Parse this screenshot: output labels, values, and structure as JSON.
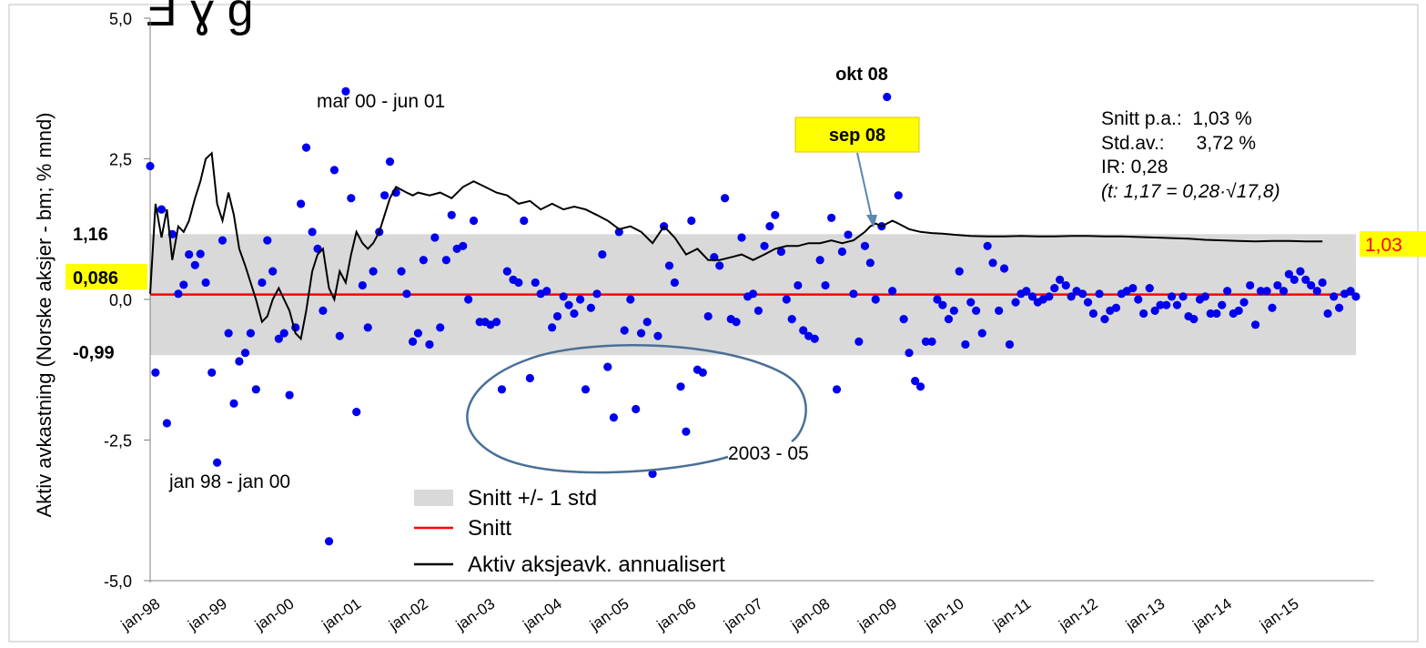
{
  "chart_data": {
    "type": "scatter",
    "ylabel": "Aktiv avkastning (Norske aksjer - bm; % mnd)",
    "ylim": [
      -5.0,
      5.0
    ],
    "yticks": [
      "5,0",
      "2,5",
      "0,0",
      "-2,5",
      "-5,0"
    ],
    "ytick_values": [
      5.0,
      2.5,
      0.0,
      -2.5,
      -5.0
    ],
    "xlim": [
      1998.0,
      2016.0
    ],
    "xticks": [
      "jan-98",
      "jan-99",
      "jan-00",
      "jan-01",
      "jan-02",
      "jan-03",
      "jan-04",
      "jan-05",
      "jan-06",
      "jan-07",
      "jan-08",
      "jan-09",
      "jan-10",
      "jan-11",
      "jan-12",
      "jan-13",
      "jan-14",
      "jan-15"
    ],
    "xtick_values": [
      1998,
      1999,
      2000,
      2001,
      2002,
      2003,
      2004,
      2005,
      2006,
      2007,
      2008,
      2009,
      2010,
      2011,
      2012,
      2013,
      2014,
      2015
    ],
    "band": {
      "label": "Snitt +/- 1 std",
      "low": -0.99,
      "high": 1.16,
      "color": "#d9d9d9"
    },
    "mean_line": {
      "label": "Snitt",
      "value": 0.086,
      "color": "#ff0000"
    },
    "left_labels": {
      "upper": "1,16",
      "mean": "0,086",
      "lower": "-0,99"
    },
    "right_label": "1,03",
    "highlight_color": "#ffff00",
    "point_color": "#0000ee",
    "series": [
      {
        "name": "Aktiv aksjeavk. annualisert",
        "color": "#000000",
        "points": [
          [
            1998.0,
            0.1
          ],
          [
            1998.08,
            1.7
          ],
          [
            1998.17,
            1.1
          ],
          [
            1998.25,
            1.6
          ],
          [
            1998.33,
            0.7
          ],
          [
            1998.42,
            1.3
          ],
          [
            1998.5,
            1.2
          ],
          [
            1998.58,
            1.4
          ],
          [
            1998.67,
            1.8
          ],
          [
            1998.75,
            2.1
          ],
          [
            1998.83,
            2.5
          ],
          [
            1998.92,
            2.6
          ],
          [
            1999.0,
            1.7
          ],
          [
            1999.08,
            1.4
          ],
          [
            1999.17,
            1.9
          ],
          [
            1999.25,
            1.5
          ],
          [
            1999.33,
            0.9
          ],
          [
            1999.42,
            0.6
          ],
          [
            1999.5,
            0.3
          ],
          [
            1999.58,
            0.0
          ],
          [
            1999.67,
            -0.4
          ],
          [
            1999.75,
            -0.3
          ],
          [
            1999.83,
            0.0
          ],
          [
            1999.92,
            0.2
          ],
          [
            2000.0,
            0.0
          ],
          [
            2000.08,
            -0.2
          ],
          [
            2000.17,
            -0.6
          ],
          [
            2000.25,
            -0.7
          ],
          [
            2000.33,
            -0.2
          ],
          [
            2000.42,
            0.5
          ],
          [
            2000.5,
            0.8
          ],
          [
            2000.58,
            0.9
          ],
          [
            2000.67,
            0.2
          ],
          [
            2000.75,
            0.0
          ],
          [
            2000.83,
            0.5
          ],
          [
            2000.92,
            0.3
          ],
          [
            2001.0,
            0.8
          ],
          [
            2001.08,
            1.2
          ],
          [
            2001.17,
            1.0
          ],
          [
            2001.25,
            0.9
          ],
          [
            2001.33,
            1.0
          ],
          [
            2001.42,
            1.2
          ],
          [
            2001.5,
            1.5
          ],
          [
            2001.58,
            1.8
          ],
          [
            2001.67,
            2.0
          ],
          [
            2001.75,
            1.95
          ],
          [
            2001.83,
            1.9
          ],
          [
            2001.92,
            1.85
          ],
          [
            2002.0,
            1.9
          ],
          [
            2002.17,
            1.85
          ],
          [
            2002.33,
            1.9
          ],
          [
            2002.5,
            1.8
          ],
          [
            2002.67,
            2.0
          ],
          [
            2002.83,
            2.1
          ],
          [
            2003.0,
            2.0
          ],
          [
            2003.17,
            1.9
          ],
          [
            2003.33,
            1.85
          ],
          [
            2003.5,
            1.7
          ],
          [
            2003.67,
            1.75
          ],
          [
            2003.83,
            1.6
          ],
          [
            2004.0,
            1.7
          ],
          [
            2004.17,
            1.6
          ],
          [
            2004.33,
            1.65
          ],
          [
            2004.5,
            1.6
          ],
          [
            2004.67,
            1.5
          ],
          [
            2004.83,
            1.4
          ],
          [
            2005.0,
            1.25
          ],
          [
            2005.17,
            1.3
          ],
          [
            2005.33,
            1.2
          ],
          [
            2005.5,
            1.0
          ],
          [
            2005.67,
            1.3
          ],
          [
            2005.83,
            1.1
          ],
          [
            2006.0,
            0.8
          ],
          [
            2006.17,
            0.9
          ],
          [
            2006.33,
            0.7
          ],
          [
            2006.5,
            0.7
          ],
          [
            2006.67,
            0.75
          ],
          [
            2006.83,
            0.8
          ],
          [
            2007.0,
            0.7
          ],
          [
            2007.17,
            0.8
          ],
          [
            2007.33,
            0.9
          ],
          [
            2007.5,
            0.95
          ],
          [
            2007.67,
            0.95
          ],
          [
            2007.83,
            1.0
          ],
          [
            2008.0,
            1.0
          ],
          [
            2008.17,
            1.05
          ],
          [
            2008.33,
            1.0
          ],
          [
            2008.5,
            1.05
          ],
          [
            2008.67,
            1.2
          ],
          [
            2008.75,
            1.3
          ],
          [
            2008.83,
            1.35
          ],
          [
            2008.92,
            1.3
          ],
          [
            2009.0,
            1.35
          ],
          [
            2009.08,
            1.4
          ],
          [
            2009.17,
            1.35
          ],
          [
            2009.33,
            1.25
          ],
          [
            2009.5,
            1.2
          ],
          [
            2009.67,
            1.18
          ],
          [
            2009.83,
            1.17
          ],
          [
            2010.0,
            1.15
          ],
          [
            2010.25,
            1.13
          ],
          [
            2010.5,
            1.12
          ],
          [
            2010.75,
            1.12
          ],
          [
            2011.0,
            1.13
          ],
          [
            2011.25,
            1.12
          ],
          [
            2011.5,
            1.12
          ],
          [
            2011.75,
            1.13
          ],
          [
            2012.0,
            1.13
          ],
          [
            2012.25,
            1.12
          ],
          [
            2012.5,
            1.12
          ],
          [
            2012.75,
            1.11
          ],
          [
            2013.0,
            1.1
          ],
          [
            2013.25,
            1.09
          ],
          [
            2013.5,
            1.08
          ],
          [
            2013.75,
            1.06
          ],
          [
            2014.0,
            1.05
          ],
          [
            2014.25,
            1.04
          ],
          [
            2014.5,
            1.03
          ],
          [
            2014.75,
            1.04
          ],
          [
            2015.0,
            1.04
          ],
          [
            2015.25,
            1.03
          ],
          [
            2015.5,
            1.03
          ]
        ]
      }
    ],
    "scatter": [
      [
        1998.0,
        2.37
      ],
      [
        1998.08,
        -1.3
      ],
      [
        1998.17,
        1.6
      ],
      [
        1998.25,
        -2.2
      ],
      [
        1998.33,
        1.16
      ],
      [
        1998.42,
        0.1
      ],
      [
        1998.5,
        0.26
      ],
      [
        1998.58,
        0.8
      ],
      [
        1998.67,
        0.61
      ],
      [
        1998.75,
        0.81
      ],
      [
        1998.83,
        0.3
      ],
      [
        1998.92,
        -1.3
      ],
      [
        1999.0,
        -2.9
      ],
      [
        1999.08,
        1.05
      ],
      [
        1999.17,
        -0.6
      ],
      [
        1999.25,
        -1.85
      ],
      [
        1999.33,
        -1.1
      ],
      [
        1999.42,
        -0.95
      ],
      [
        1999.5,
        -0.6
      ],
      [
        1999.58,
        -1.6
      ],
      [
        1999.67,
        0.3
      ],
      [
        1999.75,
        1.05
      ],
      [
        1999.83,
        0.5
      ],
      [
        1999.92,
        -0.7
      ],
      [
        2000.0,
        -0.6
      ],
      [
        2000.08,
        -1.7
      ],
      [
        2000.17,
        -0.5
      ],
      [
        2000.25,
        1.7
      ],
      [
        2000.33,
        2.7
      ],
      [
        2000.42,
        1.2
      ],
      [
        2000.5,
        0.9
      ],
      [
        2000.58,
        -0.2
      ],
      [
        2000.67,
        -4.3
      ],
      [
        2000.75,
        2.3
      ],
      [
        2000.83,
        -0.65
      ],
      [
        2000.92,
        3.7
      ],
      [
        2001.0,
        1.8
      ],
      [
        2001.08,
        -2.0
      ],
      [
        2001.17,
        0.25
      ],
      [
        2001.25,
        -0.5
      ],
      [
        2001.33,
        0.5
      ],
      [
        2001.42,
        1.2
      ],
      [
        2001.5,
        1.85
      ],
      [
        2001.58,
        2.45
      ],
      [
        2001.67,
        1.9
      ],
      [
        2001.75,
        0.5
      ],
      [
        2001.83,
        0.1
      ],
      [
        2001.92,
        -0.75
      ],
      [
        2002.0,
        -0.6
      ],
      [
        2002.08,
        0.7
      ],
      [
        2002.17,
        -0.8
      ],
      [
        2002.25,
        1.1
      ],
      [
        2002.33,
        -0.5
      ],
      [
        2002.42,
        0.7
      ],
      [
        2002.5,
        1.5
      ],
      [
        2002.58,
        0.9
      ],
      [
        2002.67,
        0.95
      ],
      [
        2002.75,
        0.0
      ],
      [
        2002.83,
        1.4
      ],
      [
        2002.92,
        -0.4
      ],
      [
        2003.0,
        -0.4
      ],
      [
        2003.08,
        -0.45
      ],
      [
        2003.17,
        -0.4
      ],
      [
        2003.25,
        -1.6
      ],
      [
        2003.33,
        0.5
      ],
      [
        2003.42,
        0.35
      ],
      [
        2003.5,
        0.3
      ],
      [
        2003.58,
        1.4
      ],
      [
        2003.67,
        -1.4
      ],
      [
        2003.75,
        0.3
      ],
      [
        2003.83,
        0.1
      ],
      [
        2003.92,
        0.15
      ],
      [
        2004.0,
        -0.5
      ],
      [
        2004.08,
        -0.3
      ],
      [
        2004.17,
        0.05
      ],
      [
        2004.25,
        -0.1
      ],
      [
        2004.33,
        -0.25
      ],
      [
        2004.42,
        0.0
      ],
      [
        2004.5,
        -1.6
      ],
      [
        2004.58,
        -0.15
      ],
      [
        2004.67,
        0.1
      ],
      [
        2004.75,
        0.8
      ],
      [
        2004.83,
        -1.2
      ],
      [
        2004.92,
        -2.1
      ],
      [
        2005.0,
        1.2
      ],
      [
        2005.08,
        -0.55
      ],
      [
        2005.17,
        0.0
      ],
      [
        2005.25,
        -1.95
      ],
      [
        2005.33,
        -0.6
      ],
      [
        2005.42,
        -0.4
      ],
      [
        2005.5,
        -3.1
      ],
      [
        2005.58,
        -0.65
      ],
      [
        2005.67,
        1.3
      ],
      [
        2005.75,
        0.6
      ],
      [
        2005.83,
        0.3
      ],
      [
        2005.92,
        -1.55
      ],
      [
        2006.0,
        -2.35
      ],
      [
        2006.08,
        1.4
      ],
      [
        2006.17,
        -1.25
      ],
      [
        2006.25,
        -1.3
      ],
      [
        2006.33,
        -0.3
      ],
      [
        2006.42,
        0.75
      ],
      [
        2006.5,
        0.6
      ],
      [
        2006.58,
        1.8
      ],
      [
        2006.67,
        -0.35
      ],
      [
        2006.75,
        -0.4
      ],
      [
        2006.83,
        1.1
      ],
      [
        2006.92,
        0.05
      ],
      [
        2007.0,
        0.1
      ],
      [
        2007.08,
        -0.2
      ],
      [
        2007.17,
        0.95
      ],
      [
        2007.25,
        1.3
      ],
      [
        2007.33,
        1.5
      ],
      [
        2007.42,
        0.85
      ],
      [
        2007.5,
        0.0
      ],
      [
        2007.58,
        -0.35
      ],
      [
        2007.67,
        0.25
      ],
      [
        2007.75,
        -0.55
      ],
      [
        2007.83,
        -0.65
      ],
      [
        2007.92,
        -0.7
      ],
      [
        2008.0,
        0.7
      ],
      [
        2008.08,
        0.25
      ],
      [
        2008.17,
        1.45
      ],
      [
        2008.25,
        -1.6
      ],
      [
        2008.33,
        0.85
      ],
      [
        2008.42,
        1.15
      ],
      [
        2008.5,
        0.1
      ],
      [
        2008.58,
        -0.75
      ],
      [
        2008.67,
        0.95
      ],
      [
        2008.75,
        0.65
      ],
      [
        2008.83,
        0.0
      ],
      [
        2008.92,
        1.3
      ],
      [
        2009.0,
        3.6
      ],
      [
        2009.08,
        0.15
      ],
      [
        2009.17,
        1.85
      ],
      [
        2009.25,
        -0.35
      ],
      [
        2009.33,
        -0.95
      ],
      [
        2009.42,
        -1.45
      ],
      [
        2009.5,
        -1.55
      ],
      [
        2009.58,
        -0.75
      ],
      [
        2009.67,
        -0.75
      ],
      [
        2009.75,
        0.0
      ],
      [
        2009.83,
        -0.1
      ],
      [
        2009.92,
        -0.35
      ],
      [
        2010.0,
        -0.2
      ],
      [
        2010.08,
        0.5
      ],
      [
        2010.17,
        -0.8
      ],
      [
        2010.25,
        -0.05
      ],
      [
        2010.33,
        -0.2
      ],
      [
        2010.42,
        -0.6
      ],
      [
        2010.5,
        0.95
      ],
      [
        2010.58,
        0.65
      ],
      [
        2010.67,
        -0.2
      ],
      [
        2010.75,
        0.55
      ],
      [
        2010.83,
        -0.8
      ],
      [
        2010.92,
        -0.05
      ],
      [
        2011.0,
        0.1
      ],
      [
        2011.08,
        0.15
      ],
      [
        2011.17,
        0.05
      ],
      [
        2011.25,
        -0.05
      ],
      [
        2011.33,
        0.0
      ],
      [
        2011.42,
        0.05
      ],
      [
        2011.5,
        0.2
      ],
      [
        2011.58,
        0.35
      ],
      [
        2011.67,
        0.25
      ],
      [
        2011.75,
        0.05
      ],
      [
        2011.83,
        0.15
      ],
      [
        2011.92,
        0.1
      ],
      [
        2012.0,
        -0.05
      ],
      [
        2012.08,
        -0.25
      ],
      [
        2012.17,
        0.1
      ],
      [
        2012.25,
        -0.35
      ],
      [
        2012.33,
        -0.2
      ],
      [
        2012.42,
        -0.15
      ],
      [
        2012.5,
        0.1
      ],
      [
        2012.58,
        0.15
      ],
      [
        2012.67,
        0.2
      ],
      [
        2012.75,
        0.0
      ],
      [
        2012.83,
        -0.25
      ],
      [
        2012.92,
        0.2
      ],
      [
        2013.0,
        -0.2
      ],
      [
        2013.08,
        -0.1
      ],
      [
        2013.17,
        -0.1
      ],
      [
        2013.25,
        0.05
      ],
      [
        2013.33,
        -0.1
      ],
      [
        2013.42,
        0.05
      ],
      [
        2013.5,
        -0.3
      ],
      [
        2013.58,
        -0.35
      ],
      [
        2013.67,
        0.0
      ],
      [
        2013.75,
        0.05
      ],
      [
        2013.83,
        -0.25
      ],
      [
        2013.92,
        -0.25
      ],
      [
        2014.0,
        -0.1
      ],
      [
        2014.08,
        0.15
      ],
      [
        2014.17,
        -0.25
      ],
      [
        2014.25,
        -0.2
      ],
      [
        2014.33,
        -0.05
      ],
      [
        2014.42,
        0.25
      ],
      [
        2014.5,
        -0.45
      ],
      [
        2014.58,
        0.15
      ],
      [
        2014.67,
        0.15
      ],
      [
        2014.75,
        -0.15
      ],
      [
        2014.83,
        0.25
      ],
      [
        2014.92,
        0.15
      ],
      [
        2015.0,
        0.45
      ],
      [
        2015.08,
        0.35
      ],
      [
        2015.17,
        0.5
      ],
      [
        2015.25,
        0.35
      ],
      [
        2015.33,
        0.25
      ],
      [
        2015.42,
        0.15
      ],
      [
        2015.5,
        0.3
      ],
      [
        2015.58,
        -0.25
      ],
      [
        2015.67,
        0.05
      ],
      [
        2015.75,
        -0.15
      ],
      [
        2015.83,
        0.1
      ],
      [
        2015.92,
        0.15
      ],
      [
        2016.0,
        0.05
      ]
    ],
    "legend": [
      {
        "label": "Snitt +/- 1 std",
        "kind": "band"
      },
      {
        "label": "Snitt",
        "kind": "line-red"
      },
      {
        "label": "Aktiv aksjeavk. annualisert",
        "kind": "line-black"
      }
    ],
    "annotations": {
      "okt08": "okt 08",
      "sep08": "sep 08",
      "mar00": "mar 00 - jun 01",
      "jan98": "jan 98 - jan 00",
      "period0305": "2003 - 05"
    },
    "stats": {
      "line1": "Snitt p.a.:  1,03 %",
      "line2": "Std.av.:      3,72 %",
      "line3": "IR: 0,28",
      "line4": "(t: 1,17 = 0,28·√17,8)"
    },
    "top_partial": "Ǝ ɣ ɡ"
  }
}
